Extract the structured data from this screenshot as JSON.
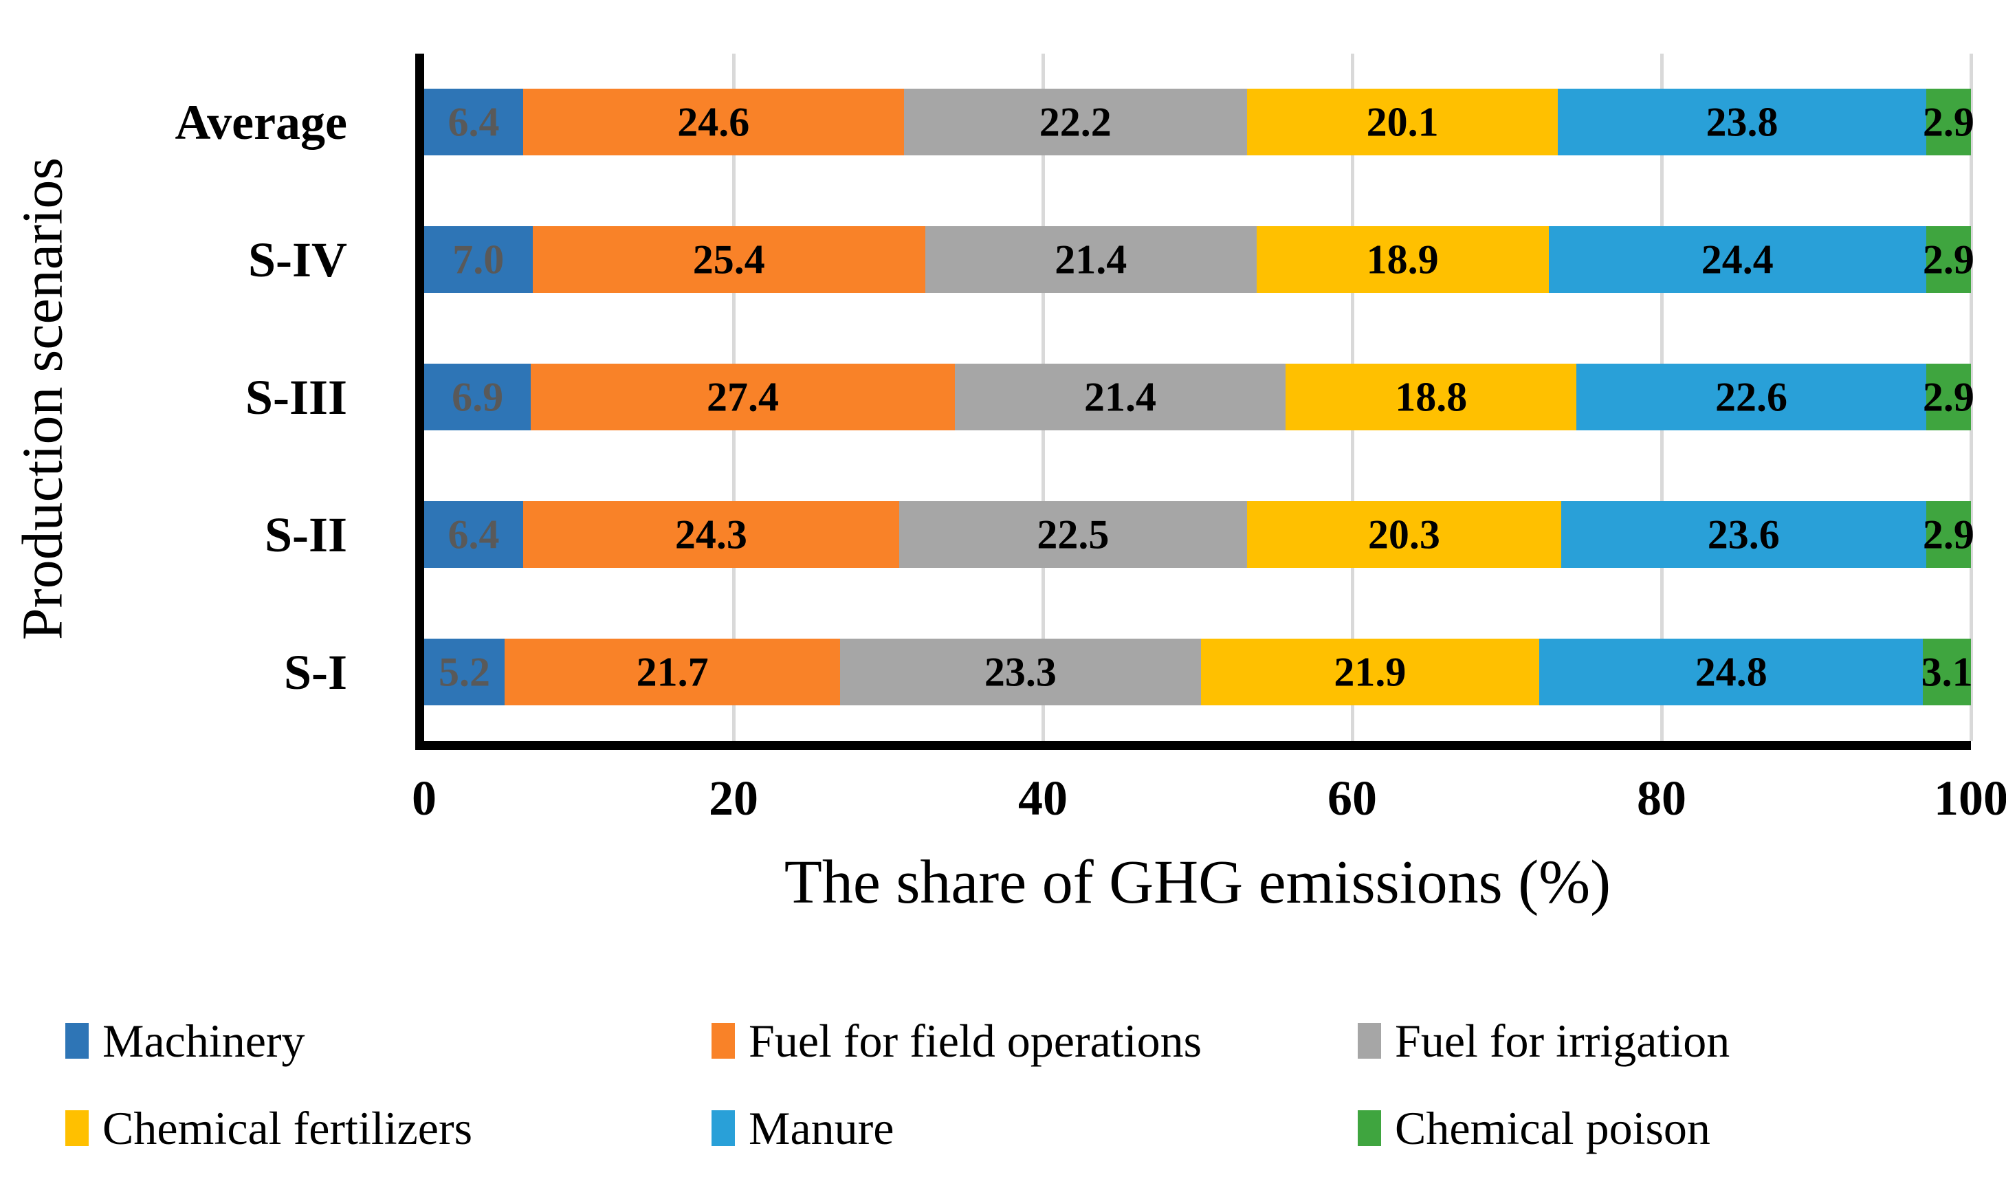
{
  "chart_data": {
    "type": "bar",
    "orientation": "horizontal",
    "stacked": true,
    "unit": "%",
    "title": "",
    "xlabel": "The share of GHG emissions (%)",
    "ylabel": "Production scenarios",
    "xlim": [
      0,
      100
    ],
    "xticks": [
      0,
      20,
      40,
      60,
      80,
      100
    ],
    "grid": "vertical gridlines at each x tick",
    "gridline_color": "#D9D9D9",
    "axis_color": "#000000",
    "legend_position": "bottom, two rows by three columns",
    "rows_top_to_bottom": [
      "Average",
      "S-IV",
      "S-III",
      "S-II",
      "S-I"
    ],
    "series": [
      {
        "name": "Machinery",
        "color": "#2E75B6",
        "label_color": "#595959",
        "values": {
          "Average": 6.4,
          "S-IV": 7.0,
          "S-III": 6.9,
          "S-II": 6.4,
          "S-I": 5.2
        }
      },
      {
        "name": "Fuel for field operations",
        "color": "#F98228",
        "label_color": "#000000",
        "values": {
          "Average": 24.6,
          "S-IV": 25.4,
          "S-III": 27.4,
          "S-II": 24.3,
          "S-I": 21.7
        }
      },
      {
        "name": "Fuel for irrigation",
        "color": "#A6A6A6",
        "label_color": "#000000",
        "values": {
          "Average": 22.2,
          "S-IV": 21.4,
          "S-III": 21.4,
          "S-II": 22.5,
          "S-I": 23.3
        }
      },
      {
        "name": "Chemical fertilizers",
        "color": "#FFC000",
        "label_color": "#000000",
        "values": {
          "Average": 20.1,
          "S-IV": 18.9,
          "S-III": 18.8,
          "S-II": 20.3,
          "S-I": 21.9
        }
      },
      {
        "name": "Manure",
        "color": "#29A0D8",
        "label_color": "#000000",
        "values": {
          "Average": 23.8,
          "S-IV": 24.4,
          "S-III": 22.6,
          "S-II": 23.6,
          "S-I": 24.8
        }
      },
      {
        "name": "Chemical poison",
        "color": "#3FA53F",
        "label_color": "#000000",
        "values": {
          "Average": 2.9,
          "S-IV": 2.9,
          "S-III": 2.9,
          "S-II": 2.9,
          "S-I": 3.1
        }
      }
    ]
  }
}
